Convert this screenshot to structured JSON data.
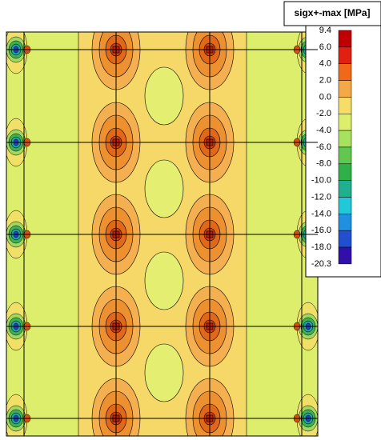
{
  "legend": {
    "title": "sigx+-max [MPa]",
    "labels": [
      "9.4",
      "6.0",
      "4.0",
      "2.0",
      "0.0",
      "-2.0",
      "-4.0",
      "-6.0",
      "-8.0",
      "-10.0",
      "-12.0",
      "-14.0",
      "-16.0",
      "-18.0",
      "-20.3"
    ]
  }
}
